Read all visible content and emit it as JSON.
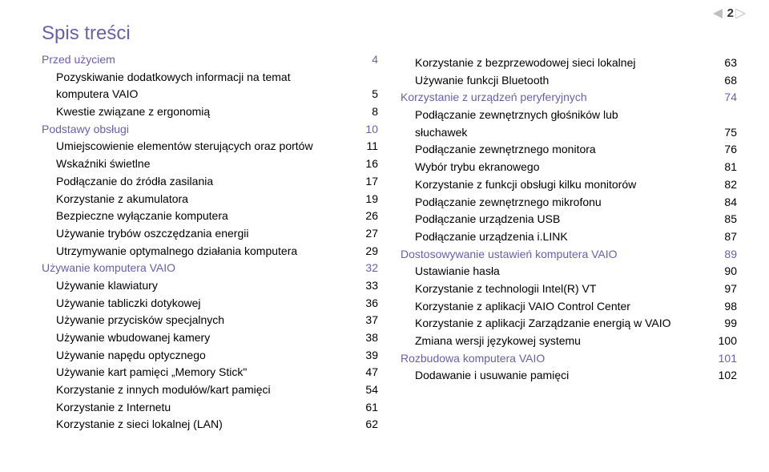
{
  "page_indicator": {
    "number": "2"
  },
  "title": "Spis treści",
  "colors": {
    "section": "#6b5fa8",
    "text": "#000000",
    "background": "#ffffff"
  },
  "fonts": {
    "title_size": 24,
    "line_size": 14
  },
  "col1": [
    {
      "label": "Przed użyciem",
      "page": "4",
      "level": "section",
      "wrap": false
    },
    {
      "label": "Pozyskiwanie dodatkowych informacji na temat",
      "level": "sub",
      "wrap_first": true
    },
    {
      "label": "komputera VAIO",
      "page": "5",
      "level": "sub",
      "wrap": false
    },
    {
      "label": "Kwestie związane z ergonomią",
      "page": "8",
      "level": "sub",
      "wrap": false
    },
    {
      "label": "Podstawy obsługi",
      "page": "10",
      "level": "section",
      "wrap": false
    },
    {
      "label": "Umiejscowienie elementów sterujących oraz portów",
      "page": "11",
      "level": "sub",
      "wrap": false
    },
    {
      "label": "Wskaźniki świetlne",
      "page": "16",
      "level": "sub",
      "wrap": false
    },
    {
      "label": "Podłączanie do źródła zasilania",
      "page": "17",
      "level": "sub",
      "wrap": false
    },
    {
      "label": "Korzystanie z akumulatora",
      "page": "19",
      "level": "sub",
      "wrap": false
    },
    {
      "label": "Bezpieczne wyłączanie komputera",
      "page": "26",
      "level": "sub",
      "wrap": false
    },
    {
      "label": "Używanie trybów oszczędzania energii",
      "page": "27",
      "level": "sub",
      "wrap": false
    },
    {
      "label": "Utrzymywanie optymalnego działania komputera",
      "page": "29",
      "level": "sub",
      "wrap": false
    },
    {
      "label": "Używanie komputera VAIO",
      "page": "32",
      "level": "section",
      "wrap": false
    },
    {
      "label": "Używanie klawiatury",
      "page": "33",
      "level": "sub",
      "wrap": false
    },
    {
      "label": "Używanie tabliczki dotykowej",
      "page": "36",
      "level": "sub",
      "wrap": false
    },
    {
      "label": "Używanie przycisków specjalnych",
      "page": "37",
      "level": "sub",
      "wrap": false
    },
    {
      "label": "Używanie wbudowanej kamery",
      "page": "38",
      "level": "sub",
      "wrap": false
    },
    {
      "label": "Używanie napędu optycznego",
      "page": "39",
      "level": "sub",
      "wrap": false
    },
    {
      "label": "Używanie kart pamięci „Memory Stick\"",
      "page": "47",
      "level": "sub",
      "wrap": false
    },
    {
      "label": "Korzystanie z innych modułów/kart pamięci",
      "page": "54",
      "level": "sub",
      "wrap": false
    },
    {
      "label": "Korzystanie z Internetu",
      "page": "61",
      "level": "sub",
      "wrap": false
    },
    {
      "label": "Korzystanie z sieci lokalnej (LAN)",
      "page": "62",
      "level": "sub",
      "wrap": false
    }
  ],
  "col2": [
    {
      "label": "Korzystanie z bezprzewodowej sieci lokalnej",
      "page": "63",
      "level": "sub",
      "wrap": false
    },
    {
      "label": "Używanie funkcji Bluetooth",
      "page": "68",
      "level": "sub",
      "wrap": false
    },
    {
      "label": "Korzystanie z urządzeń peryferyjnych",
      "page": "74",
      "level": "section",
      "wrap": false
    },
    {
      "label": "Podłączanie zewnętrznych głośników lub",
      "level": "sub",
      "wrap_first": true
    },
    {
      "label": "słuchawek",
      "page": "75",
      "level": "sub",
      "wrap": false
    },
    {
      "label": "Podłączanie zewnętrznego monitora",
      "page": "76",
      "level": "sub",
      "wrap": false
    },
    {
      "label": "Wybór trybu ekranowego",
      "page": "81",
      "level": "sub",
      "wrap": false
    },
    {
      "label": "Korzystanie z funkcji obsługi kilku monitorów",
      "page": "82",
      "level": "sub",
      "wrap": false
    },
    {
      "label": "Podłączanie zewnętrznego mikrofonu",
      "page": "84",
      "level": "sub",
      "wrap": false
    },
    {
      "label": "Podłączanie urządzenia USB",
      "page": "85",
      "level": "sub",
      "wrap": false
    },
    {
      "label": "Podłączanie urządzenia i.LINK",
      "page": "87",
      "level": "sub",
      "wrap": false
    },
    {
      "label": "Dostosowywanie ustawień komputera VAIO",
      "page": "89",
      "level": "section",
      "wrap": false
    },
    {
      "label": "Ustawianie hasła",
      "page": "90",
      "level": "sub",
      "wrap": false
    },
    {
      "label": "Korzystanie z technologii Intel(R) VT",
      "page": "97",
      "level": "sub",
      "wrap": false
    },
    {
      "label": "Korzystanie z aplikacji VAIO Control Center",
      "page": "98",
      "level": "sub",
      "wrap": false
    },
    {
      "label": "Korzystanie z aplikacji Zarządzanie energią w VAIO",
      "page": "99",
      "level": "sub",
      "wrap": false
    },
    {
      "label": "Zmiana wersji językowej systemu",
      "page": "100",
      "level": "sub",
      "wrap": false
    },
    {
      "label": "Rozbudowa komputera VAIO",
      "page": "101",
      "level": "section",
      "wrap": false
    },
    {
      "label": "Dodawanie i usuwanie pamięci",
      "page": "102",
      "level": "sub",
      "wrap": false
    }
  ]
}
